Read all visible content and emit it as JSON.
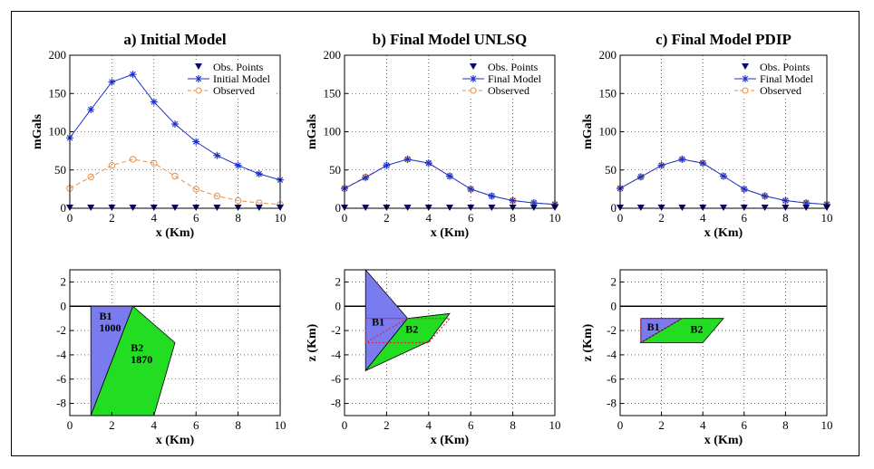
{
  "chart_data": [
    {
      "type": "line",
      "title": "a) Initial Model",
      "xlabel": "x (Km)",
      "ylabel": "mGals",
      "xlim": [
        0,
        10
      ],
      "ylim": [
        0,
        200
      ],
      "xticks": [
        "0",
        "2",
        "4",
        "6",
        "8",
        "10"
      ],
      "yticks": [
        "0",
        "50",
        "100",
        "150",
        "200"
      ],
      "grid": true,
      "legend_position": "top-right",
      "x": [
        0,
        1,
        2,
        3,
        4,
        5,
        6,
        7,
        8,
        9,
        10
      ],
      "series": [
        {
          "name": "Obs. Points",
          "values": [
            0,
            0,
            0,
            0,
            0,
            0,
            0,
            0,
            0,
            0,
            0
          ],
          "color": "#0a0a6e",
          "marker": "triangle-down"
        },
        {
          "name": "Initial Model",
          "values": [
            92,
            129,
            165,
            175,
            139,
            110,
            87,
            69,
            56,
            45,
            37
          ],
          "color": "#1a32c8",
          "marker": "star"
        },
        {
          "name": "Observed",
          "values": [
            26,
            41,
            56,
            64,
            59,
            42,
            25,
            16,
            10,
            7,
            5
          ],
          "color": "#e8904a",
          "marker": "circle",
          "dash": true
        }
      ]
    },
    {
      "type": "line",
      "title": "b) Final Model UNLSQ",
      "xlabel": "x (Km)",
      "ylabel": "mGals",
      "xlim": [
        0,
        10
      ],
      "ylim": [
        0,
        200
      ],
      "xticks": [
        "0",
        "2",
        "4",
        "6",
        "8",
        "10"
      ],
      "yticks": [
        "0",
        "50",
        "100",
        "150",
        "200"
      ],
      "grid": true,
      "legend_position": "top-right",
      "x": [
        0,
        1,
        2,
        3,
        4,
        5,
        6,
        7,
        8,
        9,
        10
      ],
      "series": [
        {
          "name": "Obs. Points",
          "values": [
            0,
            0,
            0,
            0,
            0,
            0,
            0,
            0,
            0,
            0,
            0
          ],
          "color": "#0a0a6e",
          "marker": "triangle-down"
        },
        {
          "name": "Final Model",
          "values": [
            26,
            40,
            56,
            64,
            59,
            42,
            25,
            16,
            10,
            7,
            5
          ],
          "color": "#1a32c8",
          "marker": "star"
        },
        {
          "name": "Observed",
          "values": [
            26,
            41,
            56,
            64,
            59,
            42,
            25,
            16,
            10,
            7,
            5
          ],
          "color": "#e8904a",
          "marker": "circle",
          "dash": true
        }
      ]
    },
    {
      "type": "line",
      "title": "c) Final Model PDIP",
      "xlabel": "x (Km)",
      "ylabel": "mGals",
      "xlim": [
        0,
        10
      ],
      "ylim": [
        0,
        200
      ],
      "xticks": [
        "0",
        "2",
        "4",
        "6",
        "8",
        "10"
      ],
      "yticks": [
        "0",
        "50",
        "100",
        "150",
        "200"
      ],
      "grid": true,
      "legend_position": "top-right",
      "x": [
        0,
        1,
        2,
        3,
        4,
        5,
        6,
        7,
        8,
        9,
        10
      ],
      "series": [
        {
          "name": "Obs. Points",
          "values": [
            0,
            0,
            0,
            0,
            0,
            0,
            0,
            0,
            0,
            0,
            0
          ],
          "color": "#0a0a6e",
          "marker": "triangle-down"
        },
        {
          "name": "Final Model",
          "values": [
            26,
            41,
            56,
            64,
            59,
            42,
            25,
            16,
            10,
            7,
            5
          ],
          "color": "#1a32c8",
          "marker": "star"
        },
        {
          "name": "Observed",
          "values": [
            26,
            41,
            56,
            64,
            59,
            42,
            25,
            16,
            10,
            7,
            5
          ],
          "color": "#e8904a",
          "marker": "circle",
          "dash": true
        }
      ]
    },
    {
      "type": "polygon",
      "xlabel": "x (Km)",
      "ylabel": "",
      "xlim": [
        0,
        10
      ],
      "ylim": [
        -9,
        3
      ],
      "xticks": [
        "0",
        "2",
        "4",
        "6",
        "8",
        "10"
      ],
      "yticks": [
        "2",
        "0",
        "-2",
        "-4",
        "-6",
        "-8"
      ],
      "grid": true,
      "bodies": [
        {
          "label": "B1",
          "value": "1000",
          "color": "#7b7bf0",
          "points": [
            [
              1,
              0
            ],
            [
              3,
              0
            ],
            [
              1,
              -9
            ]
          ]
        },
        {
          "label": "B2",
          "value": "1870",
          "color": "#22dd22",
          "points": [
            [
              3,
              0
            ],
            [
              5,
              -3
            ],
            [
              4,
              -9
            ],
            [
              1,
              -9
            ]
          ]
        }
      ],
      "dashed_outline": []
    },
    {
      "type": "polygon",
      "xlabel": "x (Km)",
      "ylabel": "z (Km)",
      "xlim": [
        0,
        10
      ],
      "ylim": [
        -9,
        3
      ],
      "xticks": [
        "0",
        "2",
        "4",
        "6",
        "8",
        "10"
      ],
      "yticks": [
        "2",
        "0",
        "-2",
        "-4",
        "-6",
        "-8"
      ],
      "grid": true,
      "bodies": [
        {
          "label": "B1",
          "value": "",
          "color": "#7b7bf0",
          "points": [
            [
              1,
              3
            ],
            [
              3,
              -1
            ],
            [
              1,
              -5.3
            ]
          ]
        },
        {
          "label": "B2",
          "value": "",
          "color": "#22dd22",
          "points": [
            [
              3,
              -1
            ],
            [
              5,
              -0.6
            ],
            [
              4,
              -2.9
            ],
            [
              1,
              -5.3
            ]
          ]
        }
      ],
      "dashed_outline": [
        [
          1,
          -1
        ],
        [
          3,
          -1
        ],
        [
          1,
          -3
        ],
        [
          1,
          -1
        ],
        [
          3,
          -1
        ],
        [
          5,
          -1
        ],
        [
          4,
          -3
        ],
        [
          1,
          -3
        ]
      ]
    },
    {
      "type": "polygon",
      "xlabel": "x (Km)",
      "ylabel": "z (Km)",
      "xlim": [
        0,
        10
      ],
      "ylim": [
        -9,
        3
      ],
      "xticks": [
        "0",
        "2",
        "4",
        "6",
        "8",
        "10"
      ],
      "yticks": [
        "2",
        "0",
        "-2",
        "-4",
        "-6",
        "-8"
      ],
      "grid": true,
      "bodies": [
        {
          "label": "B1",
          "value": "",
          "color": "#7b7bf0",
          "points": [
            [
              1,
              -1
            ],
            [
              3,
              -1
            ],
            [
              1,
              -3
            ]
          ]
        },
        {
          "label": "B2",
          "value": "",
          "color": "#22dd22",
          "points": [
            [
              3,
              -1
            ],
            [
              5,
              -1
            ],
            [
              4,
              -3
            ],
            [
              1,
              -3
            ]
          ]
        }
      ],
      "dashed_outline": [
        [
          1,
          -1
        ],
        [
          3,
          -1
        ],
        [
          1,
          -3
        ],
        [
          1,
          -1
        ]
      ]
    }
  ]
}
